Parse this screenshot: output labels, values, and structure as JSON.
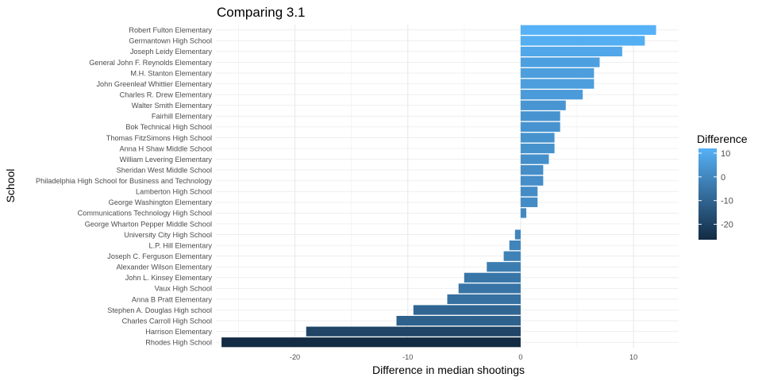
{
  "chart_data": {
    "type": "bar",
    "orientation": "horizontal",
    "title": "Comparing 3.1",
    "xlabel": "Difference in median shootings",
    "ylabel": "School",
    "xlim": [
      -27,
      14
    ],
    "x_ticks": [
      -20,
      -10,
      0,
      10
    ],
    "x_tick_labels": [
      "-20",
      "-10",
      "0",
      "10"
    ],
    "grid": true,
    "legend": {
      "title": "Difference",
      "placement": "right",
      "range": [
        -26.5,
        12
      ],
      "ticks": [
        10,
        0,
        -10,
        -20
      ],
      "tick_labels": [
        "10",
        "0",
        "-10",
        "-20"
      ],
      "color_low": "#132B43",
      "color_high": "#56B1F7"
    },
    "categories": [
      "Robert Fulton Elementary",
      "Germantown High School",
      "Joseph Leidy Elementary",
      "General John F. Reynolds Elementary",
      "M.H. Stanton Elementary",
      "John Greenleaf Whittier Elementary",
      "Charles R. Drew Elementary",
      "Walter Smith Elementary",
      "Fairhill Elementary",
      "Bok Technical High School",
      "Thomas FitzSimons High School",
      "Anna H Shaw Middle School",
      "William Levering Elementary",
      "Sheridan West Middle School",
      "Philadelphia High School for Business and Technology",
      "Lamberton High School",
      "George Washington Elementary",
      "Communications Technology High School",
      "George Wharton Pepper Middle School",
      "University City High School",
      "L.P. Hill Elementary",
      "Joseph C.  Ferguson Elementary",
      "Alexander Wilson Elementary",
      "John L. Kinsey Elementary",
      "Vaux High School",
      "Anna B Pratt Elementary",
      "Stephen A. Douglas High school",
      "Charles Carroll High School",
      "Harrison Elementary",
      "Rhodes High School"
    ],
    "values": [
      12,
      11,
      9,
      7,
      6.5,
      6.5,
      5.5,
      4,
      3.5,
      3.5,
      3,
      3,
      2.5,
      2,
      2,
      1.5,
      1.5,
      0.5,
      0,
      -0.5,
      -1,
      -1.5,
      -3,
      -5,
      -5.5,
      -6.5,
      -9.5,
      -11,
      -19,
      -26.5
    ]
  }
}
